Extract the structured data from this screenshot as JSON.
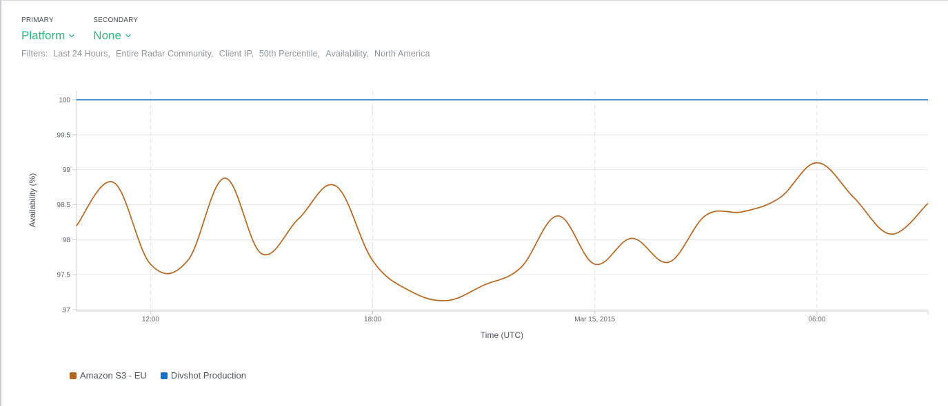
{
  "header": {
    "primary": {
      "label": "PRIMARY",
      "value": "Platform"
    },
    "secondary": {
      "label": "SECONDARY",
      "value": "None"
    }
  },
  "filters": {
    "label": "Filters:",
    "items": [
      "Last 24 Hours",
      "Entire Radar Community",
      "Client IP",
      "50th Percentile",
      "Availability",
      "North America"
    ]
  },
  "colors": {
    "accent": "#2fb380",
    "series_amazon": "#b5651d",
    "series_divshot": "#1a6fc0"
  },
  "chart_data": {
    "type": "line",
    "xlabel": "Time (UTC)",
    "ylabel": "Availability (%)",
    "ylim": [
      97,
      100.2
    ],
    "yticks": [
      97,
      97.5,
      98,
      98.5,
      99,
      99.5,
      100
    ],
    "xlim_hours": [
      10,
      33
    ],
    "xticks": [
      {
        "hour": 12,
        "label": "12:00"
      },
      {
        "hour": 18,
        "label": "18:00"
      },
      {
        "hour": 24,
        "label": "Mar 15, 2015"
      },
      {
        "hour": 30,
        "label": "06:00"
      }
    ],
    "grid": true,
    "series": [
      {
        "name": "Amazon S3 - EU",
        "color": "#b5651d",
        "x": [
          10,
          11,
          12,
          13,
          14,
          15,
          16,
          17,
          18,
          19,
          20,
          21,
          22,
          23,
          24,
          25,
          26,
          27,
          28,
          29,
          30,
          31,
          32,
          33
        ],
        "y": [
          98.2,
          98.82,
          97.65,
          97.7,
          98.88,
          97.8,
          98.3,
          98.77,
          97.7,
          97.27,
          97.13,
          97.35,
          97.6,
          98.34,
          97.65,
          98.02,
          97.68,
          98.35,
          98.4,
          98.6,
          99.1,
          98.6,
          98.08,
          98.52
        ]
      },
      {
        "name": "Divshot Production",
        "color": "#1a6fc0",
        "x": [
          10,
          33
        ],
        "y": [
          100,
          100
        ]
      }
    ]
  }
}
